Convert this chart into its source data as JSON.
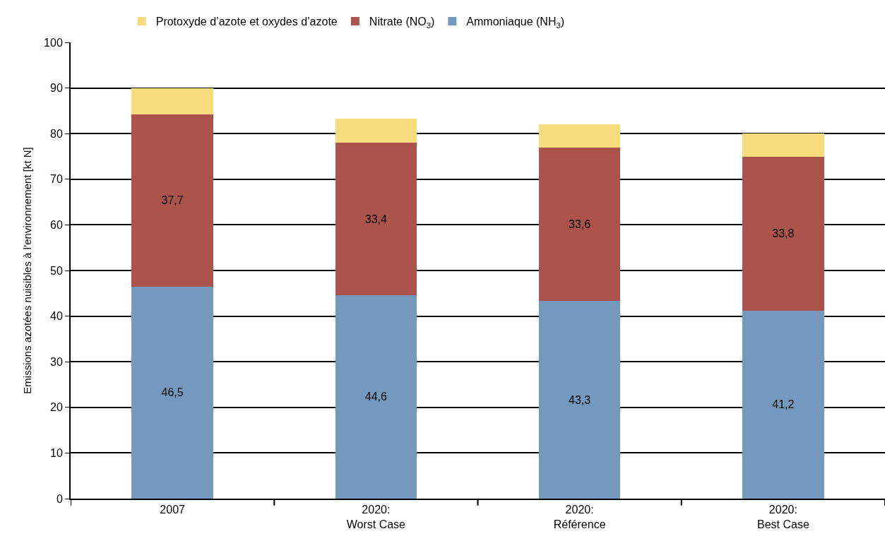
{
  "chart_data": {
    "type": "bar",
    "stacked": true,
    "ylabel": "Emissions azotées nuisibles à l’environnement [kt N]",
    "categories": [
      "2007",
      "2020:\nWorst Case",
      "2020:\nRéférence",
      "2020:\nBest Case"
    ],
    "series": [
      {
        "name": "Ammoniaque (NH$_{3}$)",
        "color": "#7399be",
        "values": [
          46.5,
          44.6,
          43.3,
          41.2
        ],
        "value_labels": [
          "46,5",
          "44,6",
          "43,3",
          "41,2"
        ]
      },
      {
        "name": "Nitrate (NO$_{3}$)",
        "color": "#ac544b",
        "values": [
          37.7,
          33.4,
          33.6,
          33.8
        ],
        "value_labels": [
          "37,7",
          "33,4",
          "33,6",
          "33,8"
        ]
      },
      {
        "name": "Protoxyde d’azote et oxydes d’azote",
        "color": "#f7dc7e",
        "values": [
          5.8,
          5.3,
          5.1,
          5.0
        ]
      }
    ],
    "ylim": [
      0,
      100
    ],
    "yticks": [
      0,
      10,
      20,
      30,
      40,
      50,
      60,
      70,
      80,
      90,
      100
    ],
    "grid": "y",
    "legend": "top"
  }
}
